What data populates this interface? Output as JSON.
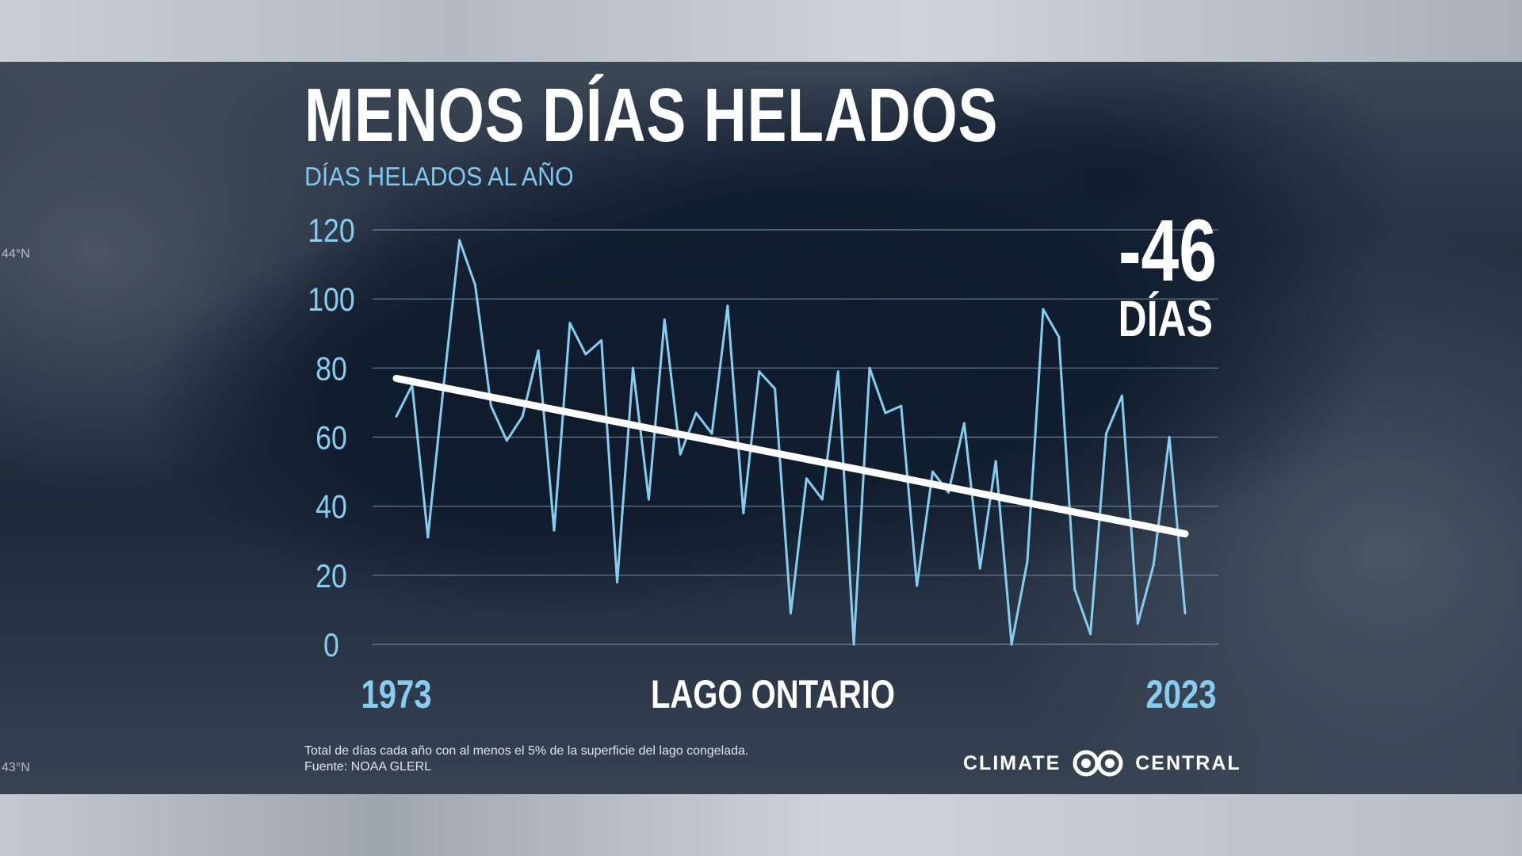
{
  "title": "MENOS DÍAS HELADOS",
  "subtitle": "DÍAS HELADOS AL AÑO",
  "highlight": {
    "value": "-46",
    "unit": "DÍAS"
  },
  "location_label": "LAGO ONTARIO",
  "footnote": {
    "line1": "Total de días cada año con al menos el 5% de la superficie del lago congelada.",
    "line2": "Fuente: NOAA GLERL"
  },
  "logo": {
    "left": "CLIMATE",
    "right": "CENTRAL"
  },
  "lat_labels": [
    "44°N",
    "43°N"
  ],
  "colors": {
    "series": "#86cdf0",
    "trend": "#ffffff",
    "axis_text": "#86cdf0",
    "grid": "#7f9ab3"
  },
  "chart_data": {
    "type": "line",
    "title": "DÍAS HELADOS AL AÑO",
    "x_start_label": "1973",
    "x_end_label": "2023",
    "xlim": [
      1973,
      2023
    ],
    "ylim": [
      0,
      120
    ],
    "yticks": [
      0,
      20,
      40,
      60,
      80,
      100,
      120
    ],
    "grid": true,
    "x": [
      1973,
      1974,
      1975,
      1976,
      1977,
      1978,
      1979,
      1980,
      1981,
      1982,
      1983,
      1984,
      1985,
      1986,
      1987,
      1988,
      1989,
      1990,
      1991,
      1992,
      1993,
      1994,
      1995,
      1996,
      1997,
      1998,
      1999,
      2000,
      2001,
      2002,
      2003,
      2004,
      2005,
      2006,
      2007,
      2008,
      2009,
      2010,
      2011,
      2012,
      2013,
      2014,
      2015,
      2016,
      2017,
      2018,
      2019,
      2020,
      2021,
      2022,
      2023
    ],
    "series": [
      {
        "values": [
          66,
          75,
          31,
          75,
          117,
          104,
          69,
          59,
          66,
          85,
          33,
          93,
          84,
          88,
          18,
          80,
          42,
          94,
          55,
          67,
          61,
          98,
          38,
          79,
          74,
          9,
          48,
          42,
          79,
          0,
          80,
          67,
          69,
          17,
          50,
          44,
          64,
          22,
          53,
          0,
          24,
          97,
          89,
          16,
          3,
          61,
          72,
          6,
          23,
          60,
          9
        ]
      }
    ],
    "trend": {
      "start": [
        1973,
        77
      ],
      "end": [
        2023,
        32
      ],
      "change": -46
    }
  }
}
